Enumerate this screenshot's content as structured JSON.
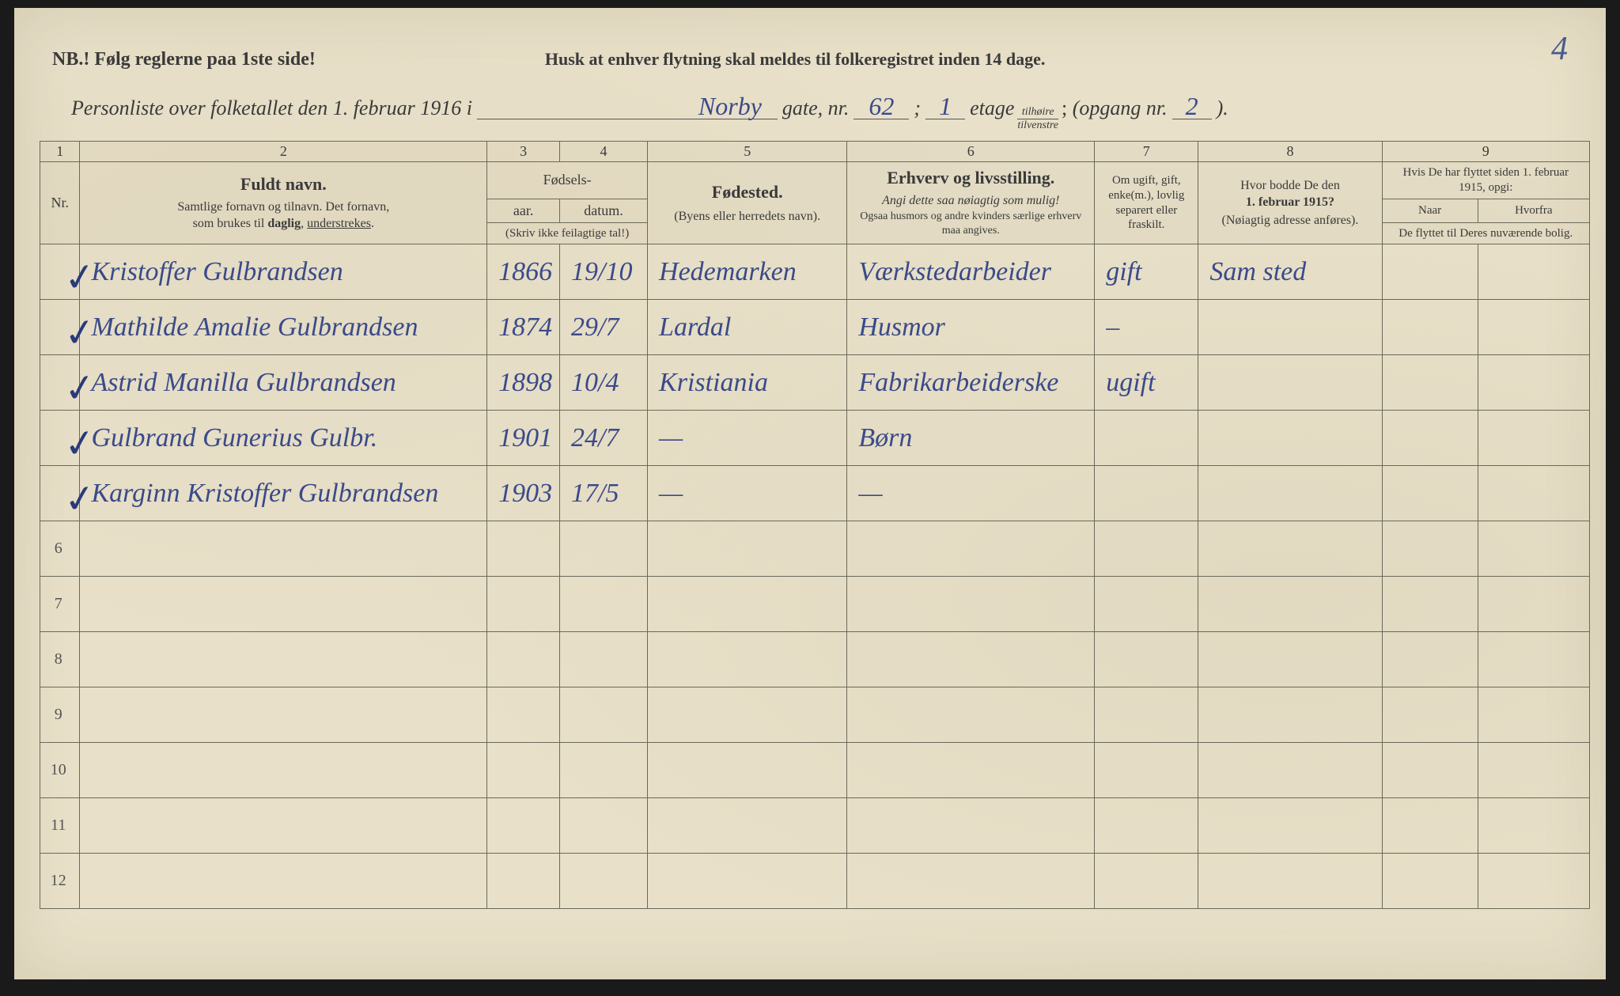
{
  "page_number_corner": "4",
  "notice": {
    "nb": "NB.!  Følg reglerne paa 1ste side!",
    "husk": "Husk at enhver flytning skal meldes til folkeregistret inden 14 dage."
  },
  "subtitle": {
    "prefix": "Personliste over folketallet den 1. februar 1916 i",
    "street": "Norby",
    "gate_lbl": "gate, nr.",
    "house_nr": "62",
    "semi": ";",
    "floor": "1",
    "etage_lbl": "etage",
    "frac_top": "tilhøire",
    "frac_bot": "tilvenstre",
    "opgang_lbl": "(opgang nr.",
    "entrance": "2",
    "close": ")."
  },
  "colnums": [
    "1",
    "2",
    "3",
    "4",
    "5",
    "6",
    "7",
    "8",
    "9"
  ],
  "headers": {
    "nr": "Nr.",
    "name_title": "Fuldt navn.",
    "name_sub1": "Samtlige fornavn og tilnavn.  Det fornavn,",
    "name_sub2": "som brukes til daglig, understrekes.",
    "fodsels": "Fødsels-",
    "aar": "aar.",
    "datum": "datum.",
    "aar_note": "(Skriv ikke feilagtige tal!)",
    "fodested": "Fødested.",
    "fodested_sub": "(Byens eller herredets navn).",
    "erhverv": "Erhverv og livsstilling.",
    "erhverv_it": "Angi dette saa nøiagtig som mulig!",
    "erhverv_sub": "Ogsaa husmors og andre kvinders særlige erhverv maa angives.",
    "marital": "Om ugift, gift, enke(m.), lovlig separert eller fraskilt.",
    "prev_addr_title": "Hvor bodde De den",
    "prev_addr_date": "1. februar 1915?",
    "prev_addr_sub": "(Nøiagtig adresse anføres).",
    "moved_title": "Hvis De har flyttet siden 1. februar 1915, opgi:",
    "moved_naar": "Naar",
    "moved_hvorfra": "Hvorfra",
    "moved_sub": "De flyttet til Deres nuværende bolig."
  },
  "rows": [
    {
      "nr": "",
      "chk": "✓",
      "name": "Kristoffer Gulbrandsen",
      "yr": "1866",
      "date": "19/10",
      "birth": "Hedemarken",
      "occ": "Værkstedarbeider",
      "mar": "gift",
      "addr": "Sam sted",
      "when": "",
      "from": ""
    },
    {
      "nr": "",
      "chk": "✓",
      "name": "Mathilde Amalie Gulbrandsen",
      "yr": "1874",
      "date": "29/7",
      "birth": "Lardal",
      "occ": "Husmor",
      "mar": "–",
      "addr": "",
      "when": "",
      "from": ""
    },
    {
      "nr": "",
      "chk": "✓",
      "name": "Astrid Manilla Gulbrandsen",
      "yr": "1898",
      "date": "10/4",
      "birth": "Kristiania",
      "occ": "Fabrikarbeiderske",
      "mar": "ugift",
      "addr": "",
      "when": "",
      "from": ""
    },
    {
      "nr": "",
      "chk": "✓",
      "name": "Gulbrand Gunerius Gulbr.",
      "yr": "1901",
      "date": "24/7",
      "birth": "—",
      "occ": "Børn",
      "mar": "",
      "addr": "",
      "when": "",
      "from": ""
    },
    {
      "nr": "",
      "chk": "✓",
      "name": "Karginn Kristoffer Gulbrandsen",
      "yr": "1903",
      "date": "17/5",
      "birth": "—",
      "occ": "—",
      "mar": "",
      "addr": "",
      "when": "",
      "from": ""
    },
    {
      "nr": "6",
      "chk": "",
      "name": "",
      "yr": "",
      "date": "",
      "birth": "",
      "occ": "",
      "mar": "",
      "addr": "",
      "when": "",
      "from": ""
    },
    {
      "nr": "7",
      "chk": "",
      "name": "",
      "yr": "",
      "date": "",
      "birth": "",
      "occ": "",
      "mar": "",
      "addr": "",
      "when": "",
      "from": ""
    },
    {
      "nr": "8",
      "chk": "",
      "name": "",
      "yr": "",
      "date": "",
      "birth": "",
      "occ": "",
      "mar": "",
      "addr": "",
      "when": "",
      "from": ""
    },
    {
      "nr": "9",
      "chk": "",
      "name": "",
      "yr": "",
      "date": "",
      "birth": "",
      "occ": "",
      "mar": "",
      "addr": "",
      "when": "",
      "from": ""
    },
    {
      "nr": "10",
      "chk": "",
      "name": "",
      "yr": "",
      "date": "",
      "birth": "",
      "occ": "",
      "mar": "",
      "addr": "",
      "when": "",
      "from": ""
    },
    {
      "nr": "11",
      "chk": "",
      "name": "",
      "yr": "",
      "date": "",
      "birth": "",
      "occ": "",
      "mar": "",
      "addr": "",
      "when": "",
      "from": ""
    },
    {
      "nr": "12",
      "chk": "",
      "name": "",
      "yr": "",
      "date": "",
      "birth": "",
      "occ": "",
      "mar": "",
      "addr": "",
      "when": "",
      "from": ""
    }
  ],
  "colors": {
    "paper_bg": "#e8e0c8",
    "ink_print": "#3a3a3a",
    "ink_hand": "#3a4a8a",
    "rule": "#6a6a5a"
  }
}
